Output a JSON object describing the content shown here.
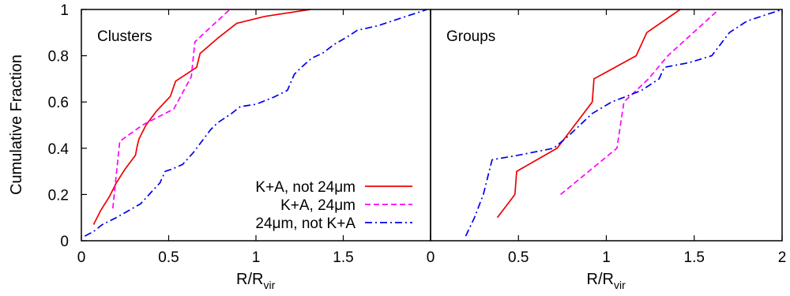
{
  "chart_data": [
    {
      "type": "line",
      "title": "Clusters",
      "xlabel": "R/R",
      "xlabel_sub": "vir",
      "ylabel": "Cumulative Fraction",
      "xlim": [
        0,
        2
      ],
      "ylim": [
        0,
        1
      ],
      "x_ticks": [
        0,
        0.5,
        1,
        1.5
      ],
      "x_tick_labels": [
        "0",
        "0.5",
        "1",
        "1.5"
      ],
      "y_ticks": [
        0,
        0.2,
        0.4,
        0.6,
        0.8,
        1
      ],
      "y_tick_labels": [
        "0",
        "0.2",
        "0.4",
        "0.6",
        "0.8",
        "1"
      ],
      "grid": false,
      "legend": {
        "placement": "bottom-right",
        "entries": [
          "K+A, not 24μm",
          "K+A, 24μm",
          "24μm, not K+A"
        ]
      },
      "series": [
        {
          "name": "K+A, not 24μm",
          "color": "#ee0000",
          "dash": "solid",
          "x": [
            0.07,
            0.11,
            0.16,
            0.2,
            0.25,
            0.31,
            0.32,
            0.33,
            0.37,
            0.43,
            0.51,
            0.54,
            0.66,
            0.68,
            0.78,
            0.89,
            1.05,
            1.31
          ],
          "y": [
            0.07,
            0.13,
            0.19,
            0.25,
            0.31,
            0.37,
            0.41,
            0.44,
            0.5,
            0.56,
            0.625,
            0.69,
            0.75,
            0.81,
            0.875,
            0.94,
            0.97,
            1.0
          ]
        },
        {
          "name": "K+A, 24μm",
          "color": "#ff00ff",
          "dash": "dashed",
          "x": [
            0.18,
            0.22,
            0.35,
            0.53,
            0.63,
            0.65,
            0.85
          ],
          "y": [
            0.14,
            0.43,
            0.5,
            0.57,
            0.71,
            0.86,
            1.0
          ]
        },
        {
          "name": "24μm, not K+A",
          "color": "#0000ee",
          "dash": "dashdot",
          "x": [
            0.02,
            0.07,
            0.12,
            0.2,
            0.27,
            0.34,
            0.4,
            0.45,
            0.48,
            0.52,
            0.58,
            0.64,
            0.7,
            0.74,
            0.78,
            0.86,
            0.91,
            1.0,
            1.1,
            1.18,
            1.22,
            1.26,
            1.32,
            1.38,
            1.45,
            1.52,
            1.58,
            1.7,
            1.82,
            1.98
          ],
          "y": [
            0.02,
            0.04,
            0.07,
            0.1,
            0.13,
            0.16,
            0.21,
            0.25,
            0.3,
            0.31,
            0.33,
            0.38,
            0.44,
            0.48,
            0.51,
            0.55,
            0.58,
            0.59,
            0.62,
            0.65,
            0.72,
            0.75,
            0.79,
            0.81,
            0.85,
            0.88,
            0.91,
            0.93,
            0.96,
            1.0
          ]
        }
      ]
    },
    {
      "type": "line",
      "title": "Groups",
      "xlabel": "R/R",
      "xlabel_sub": "vir",
      "ylabel": "",
      "xlim": [
        0,
        2
      ],
      "ylim": [
        0,
        1
      ],
      "x_ticks": [
        0,
        0.5,
        1,
        1.5,
        2
      ],
      "x_tick_labels": [
        "0",
        "0.5",
        "1",
        "1.5",
        "2"
      ],
      "grid": false,
      "series": [
        {
          "name": "K+A, not 24μm",
          "color": "#ee0000",
          "dash": "solid",
          "x": [
            0.38,
            0.48,
            0.49,
            0.72,
            0.82,
            0.92,
            0.93,
            1.17,
            1.23,
            1.42
          ],
          "y": [
            0.1,
            0.2,
            0.3,
            0.4,
            0.5,
            0.6,
            0.7,
            0.8,
            0.9,
            1.0
          ]
        },
        {
          "name": "K+A, 24μm",
          "color": "#ff00ff",
          "dash": "dashed",
          "x": [
            0.74,
            1.06,
            1.1,
            1.24,
            1.35,
            1.64
          ],
          "y": [
            0.2,
            0.4,
            0.6,
            0.7,
            0.8,
            1.0
          ]
        },
        {
          "name": "24μm, not K+A",
          "color": "#0000ee",
          "dash": "dashdot",
          "x": [
            0.2,
            0.25,
            0.3,
            0.35,
            0.5,
            0.7,
            0.78,
            0.85,
            0.92,
            1.03,
            1.1,
            1.2,
            1.3,
            1.33,
            1.47,
            1.6,
            1.7,
            1.8,
            2.0
          ],
          "y": [
            0.02,
            0.1,
            0.2,
            0.35,
            0.37,
            0.4,
            0.45,
            0.5,
            0.55,
            0.6,
            0.62,
            0.65,
            0.7,
            0.75,
            0.77,
            0.8,
            0.9,
            0.95,
            1.0
          ]
        }
      ]
    }
  ]
}
